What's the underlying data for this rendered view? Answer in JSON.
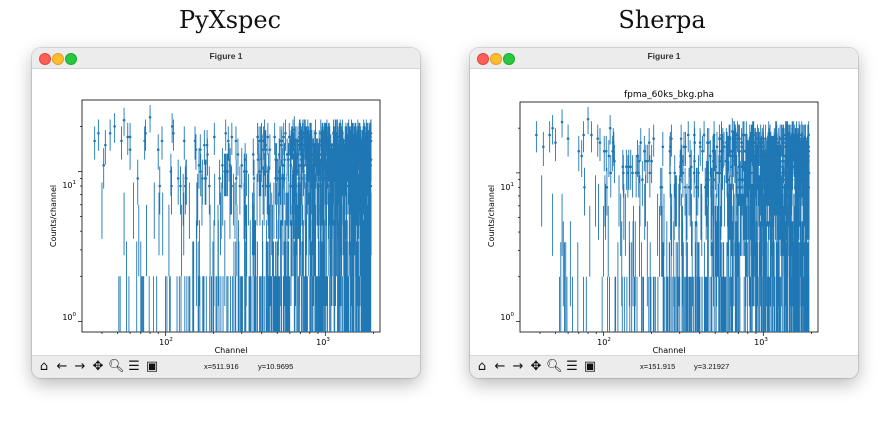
{
  "panels": [
    {
      "caption": "PyXspec",
      "window_title": "Figure 1",
      "plot_title": "",
      "xlabel": "Channel",
      "ylabel": "Counts/channel",
      "x_ticks": [
        "10^2",
        "10^3"
      ],
      "y_ticks": [
        "10^1",
        "10^0"
      ],
      "status_x": "x=511.916",
      "status_y": "y=10.9695"
    },
    {
      "caption": "Sherpa",
      "window_title": "Figure 1",
      "plot_title": "fpma_60ks_bkg.pha",
      "xlabel": "Channel",
      "ylabel": "Counts/channel",
      "x_ticks": [
        "10^2",
        "10^3"
      ],
      "y_ticks": [
        "10^1",
        "10^0"
      ],
      "status_x": "x=151.915",
      "status_y": "y=3.21927"
    }
  ],
  "toolbar": {
    "home_icon": "home-icon",
    "back_icon": "back-arrow-icon",
    "forward_icon": "forward-arrow-icon",
    "pan_icon": "pan-icon",
    "zoom_icon": "zoom-icon",
    "configure_icon": "configure-subplots-icon",
    "save_icon": "save-icon"
  },
  "colors": {
    "series": "#1f77b4"
  },
  "chart_data": [
    {
      "type": "scatter",
      "title": "",
      "xlabel": "Channel",
      "ylabel": "Counts/channel",
      "xscale": "log",
      "yscale": "log",
      "xlim": [
        30,
        2200
      ],
      "ylim": [
        0.85,
        30
      ],
      "series": [
        {
          "x_range": [
            35,
            1935
          ],
          "y_min": 1,
          "y_max": 23,
          "errorbars": true
        }
      ]
    },
    {
      "type": "scatter",
      "title": "fpma_60ks_bkg.pha",
      "xlabel": "Channel",
      "ylabel": "Counts/channel",
      "xscale": "log",
      "yscale": "log",
      "xlim": [
        30,
        2200
      ],
      "ylim": [
        0.85,
        30
      ],
      "series": [
        {
          "x_range": [
            35,
            1935
          ],
          "y_min": 1,
          "y_max": 23,
          "errorbars": true
        }
      ]
    }
  ]
}
